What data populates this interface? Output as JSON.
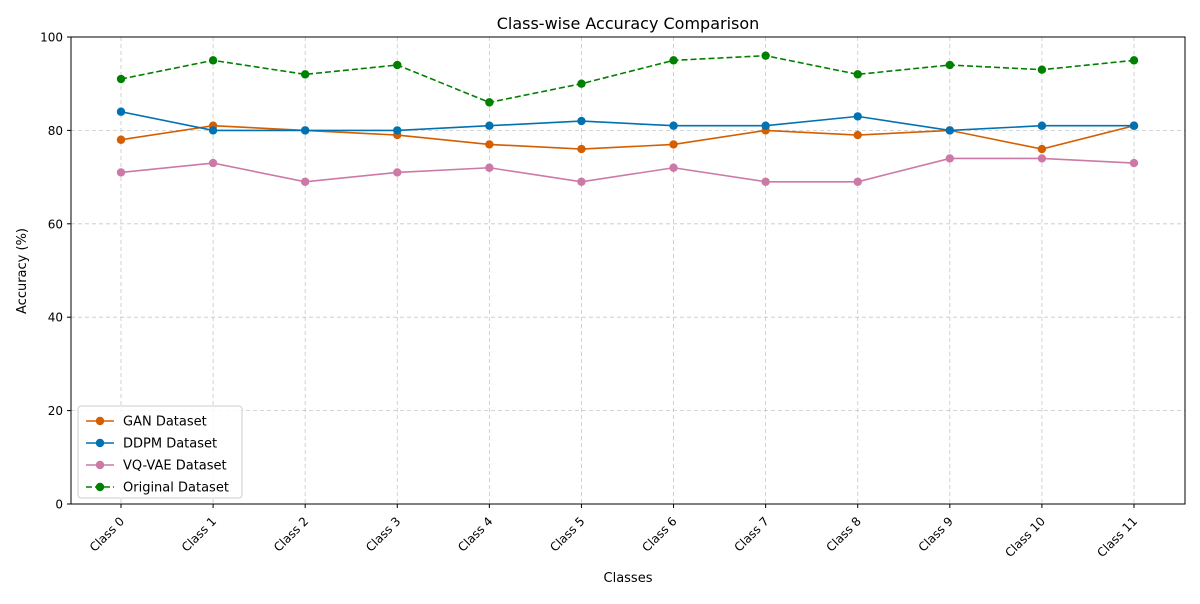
{
  "chart_data": {
    "type": "line",
    "title": "Class-wise Accuracy Comparison",
    "xlabel": "Classes",
    "ylabel": "Accuracy (%)",
    "ylim": [
      0,
      100
    ],
    "yticks": [
      0,
      20,
      40,
      60,
      80,
      100
    ],
    "grid": true,
    "legend_position": "lower-left",
    "categories": [
      "Class 0",
      "Class 1",
      "Class 2",
      "Class 3",
      "Class 4",
      "Class 5",
      "Class 6",
      "Class 7",
      "Class 8",
      "Class 9",
      "Class 10",
      "Class 11"
    ],
    "series": [
      {
        "name": "GAN Dataset",
        "color": "#d55e00",
        "dashed": false,
        "values": [
          78,
          81,
          80,
          79,
          77,
          76,
          77,
          80,
          79,
          80,
          76,
          81
        ]
      },
      {
        "name": "DDPM Dataset",
        "color": "#0072b2",
        "dashed": false,
        "values": [
          84,
          80,
          80,
          80,
          81,
          82,
          81,
          81,
          83,
          80,
          81,
          81
        ]
      },
      {
        "name": "VQ-VAE Dataset",
        "color": "#cc79a7",
        "dashed": false,
        "values": [
          71,
          73,
          69,
          71,
          72,
          69,
          72,
          69,
          69,
          74,
          74,
          73
        ]
      },
      {
        "name": "Original Dataset",
        "color": "#008000",
        "dashed": true,
        "values": [
          91,
          95,
          92,
          94,
          86,
          90,
          95,
          96,
          92,
          94,
          93,
          95
        ]
      }
    ]
  }
}
